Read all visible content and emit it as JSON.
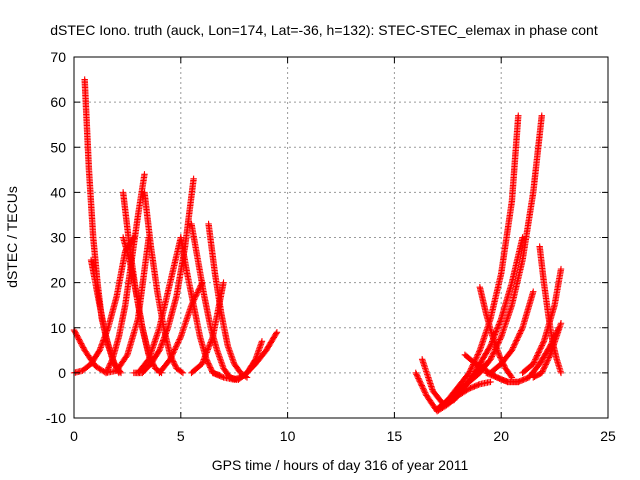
{
  "chart_data": {
    "type": "scatter",
    "title": "dSTEC Iono. truth (auck, Lon=174, Lat=-36, h=132): STEC-STEC_elemax in phase cont",
    "xlabel": "GPS time / hours of day 316 of year 2011",
    "ylabel": "dSTEC  / TECUs",
    "xlim": [
      0,
      25
    ],
    "ylim": [
      -10,
      70
    ],
    "xticks": [
      0,
      5,
      10,
      15,
      20,
      25
    ],
    "yticks": [
      -10,
      0,
      10,
      20,
      30,
      40,
      50,
      60,
      70
    ],
    "grid": true,
    "marker": "plus",
    "color": "#ff0000",
    "series": [
      {
        "x": [
          0.0,
          0.5,
          1.0,
          1.5,
          2.0,
          2.5,
          3.0,
          3.5
        ],
        "y": [
          9.5,
          5,
          1.5,
          0,
          0.5,
          4,
          12,
          30
        ]
      },
      {
        "x": [
          0.0,
          0.4,
          0.8,
          1.2,
          1.6,
          2.0,
          2.4,
          2.8
        ],
        "y": [
          0.0,
          0.5,
          2,
          5,
          10,
          17,
          27,
          30
        ]
      },
      {
        "x": [
          0.5,
          0.7,
          0.9,
          1.1,
          1.3,
          1.6,
          1.9,
          2.2
        ],
        "y": [
          65,
          45,
          30,
          20,
          12,
          6,
          2,
          0
        ]
      },
      {
        "x": [
          0.8,
          1.0,
          1.2,
          1.5,
          1.8,
          2.1
        ],
        "y": [
          25,
          20,
          15,
          8,
          3,
          0
        ]
      },
      {
        "x": [
          1.5,
          1.8,
          2.1,
          2.4,
          2.7,
          3.0,
          3.3
        ],
        "y": [
          0,
          3,
          8,
          15,
          25,
          35,
          44
        ]
      },
      {
        "x": [
          2.3,
          2.6,
          2.9,
          3.2,
          3.5,
          3.8,
          4.1
        ],
        "y": [
          40,
          28,
          18,
          10,
          4,
          1,
          0
        ]
      },
      {
        "x": [
          2.3,
          2.6,
          2.9,
          3.2,
          3.5
        ],
        "y": [
          30,
          25,
          18,
          10,
          4
        ]
      },
      {
        "x": [
          3.3,
          3.6,
          3.9,
          4.2,
          4.5,
          4.8,
          5.1
        ],
        "y": [
          40,
          28,
          18,
          10,
          4,
          1,
          0
        ]
      },
      {
        "x": [
          2.8,
          3.2,
          3.6,
          4.0,
          4.4,
          4.8,
          5.2,
          5.6
        ],
        "y": [
          0,
          0,
          2,
          5,
          10,
          17,
          28,
          43
        ]
      },
      {
        "x": [
          3.0,
          3.5,
          4.0,
          4.5,
          5.0
        ],
        "y": [
          0,
          3,
          10,
          20,
          30
        ]
      },
      {
        "x": [
          5.0,
          5.3,
          5.6,
          5.9,
          6.2,
          6.5,
          6.8
        ],
        "y": [
          30,
          22,
          15,
          8,
          3,
          0,
          -0.5
        ]
      },
      {
        "x": [
          5.5,
          5.8,
          6.1,
          6.4,
          6.7,
          7.0,
          7.3,
          7.6
        ],
        "y": [
          33,
          25,
          17,
          10,
          5,
          1,
          -1,
          -1.5
        ]
      },
      {
        "x": [
          4.0,
          4.5,
          5.0,
          5.5,
          6.0
        ],
        "y": [
          0,
          3,
          8,
          15,
          20
        ]
      },
      {
        "x": [
          6.3,
          6.6,
          6.9,
          7.2,
          7.5,
          7.8,
          8.1
        ],
        "y": [
          33,
          22,
          13,
          6,
          2,
          0,
          -1
        ]
      },
      {
        "x": [
          5.5,
          6.0,
          6.5,
          7.0
        ],
        "y": [
          0,
          2,
          8,
          20
        ]
      },
      {
        "x": [
          6.5,
          7.0,
          7.5,
          8.0,
          8.5,
          9.0,
          9.5
        ],
        "y": [
          0,
          -1,
          -1.5,
          -0.5,
          2,
          5,
          9
        ]
      },
      {
        "x": [
          7.3,
          7.7,
          8.1,
          8.5,
          8.8
        ],
        "y": [
          -1,
          -1.5,
          0,
          3,
          7
        ]
      },
      {
        "x": [
          16.0,
          16.5,
          17.0,
          17.5,
          18.0,
          18.5,
          19.0,
          19.5
        ],
        "y": [
          0,
          -5,
          -8.5,
          -7,
          -5,
          -3.5,
          -2.5,
          -2
        ]
      },
      {
        "x": [
          16.3,
          16.8,
          17.3,
          17.8,
          18.3,
          18.8,
          19.3
        ],
        "y": [
          3,
          -4,
          -7,
          -6,
          -3,
          0,
          2
        ]
      },
      {
        "x": [
          17.0,
          17.5,
          18.0,
          18.5,
          19.0,
          19.5,
          20.0,
          20.5,
          20.8
        ],
        "y": [
          -8,
          -6,
          -3,
          0,
          5,
          12,
          22,
          38,
          57
        ]
      },
      {
        "x": [
          17.5,
          18.0,
          18.5,
          19.0,
          19.5,
          20.0,
          20.5,
          21.0
        ],
        "y": [
          -6,
          -4,
          -2,
          2,
          6,
          12,
          20,
          30
        ]
      },
      {
        "x": [
          18.0,
          18.5,
          19.0,
          19.5,
          20.0,
          20.5,
          21.0,
          21.5,
          21.9
        ],
        "y": [
          -4,
          -2,
          0,
          3,
          8,
          15,
          25,
          40,
          57
        ]
      },
      {
        "x": [
          18.3,
          18.8,
          19.3,
          19.8,
          20.3,
          20.8
        ],
        "y": [
          4,
          2,
          0.5,
          -1,
          -2,
          -2
        ]
      },
      {
        "x": [
          19.0,
          19.3,
          19.6,
          19.9,
          20.2,
          20.5
        ],
        "y": [
          19,
          13,
          8,
          4,
          1,
          -1
        ]
      },
      {
        "x": [
          19.5,
          20.0,
          20.5,
          21.0,
          21.5
        ],
        "y": [
          0,
          2,
          5,
          10,
          18
        ]
      },
      {
        "x": [
          19.3,
          19.8,
          20.3,
          20.8,
          21.3,
          21.8,
          22.3,
          22.7
        ],
        "y": [
          0,
          -1,
          -2,
          -2,
          -1,
          2,
          6,
          10
        ]
      },
      {
        "x": [
          21.0,
          21.5,
          22.0,
          22.5,
          22.8
        ],
        "y": [
          0,
          2,
          7,
          15,
          23
        ]
      },
      {
        "x": [
          21.8,
          22.0,
          22.2,
          22.4,
          22.6,
          22.8
        ],
        "y": [
          28,
          20,
          13,
          7,
          3,
          0
        ]
      },
      {
        "x": [
          21.5,
          21.9,
          22.3,
          22.8
        ],
        "y": [
          -1,
          0,
          4,
          11
        ]
      }
    ]
  }
}
